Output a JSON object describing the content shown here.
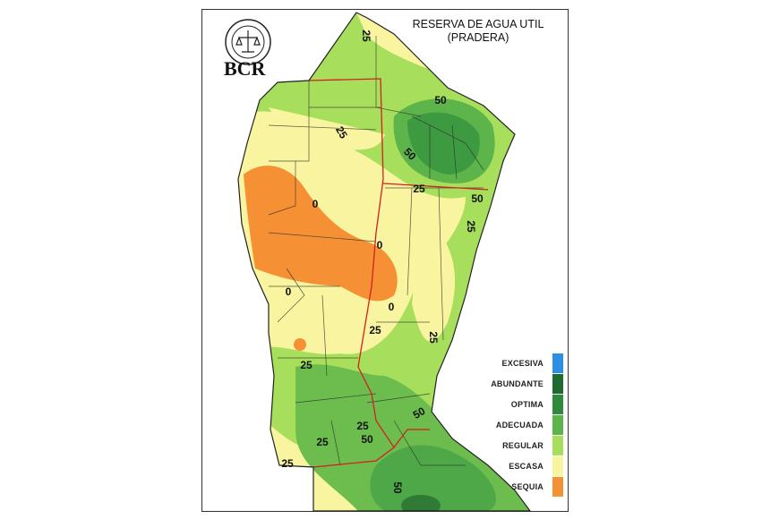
{
  "title": {
    "line1": "RESERVA DE AGUA UTIL",
    "line2": "(PRADERA)"
  },
  "logo": {
    "text": "BCR",
    "seal_text": "BOLSA DE COMERCIO DE ROSARIO"
  },
  "legend": [
    {
      "label": "EXCESIVA",
      "color": "#2b8fe6"
    },
    {
      "label": "ABUNDANTE",
      "color": "#1f6a2f"
    },
    {
      "label": "OPTIMA",
      "color": "#2f8b3b"
    },
    {
      "label": "ADECUADA",
      "color": "#5db44b"
    },
    {
      "label": "REGULAR",
      "color": "#a7de5b"
    },
    {
      "label": "ESCASA",
      "color": "#f8f49f"
    },
    {
      "label": "SEQUIA",
      "color": "#f59034"
    }
  ],
  "contour_labels": [
    "25",
    "25",
    "50",
    "50",
    "50",
    "25",
    "25",
    "0",
    "0",
    "0",
    "0",
    "25",
    "25",
    "25",
    "25",
    "50",
    "50",
    "25",
    "25",
    "50"
  ]
}
